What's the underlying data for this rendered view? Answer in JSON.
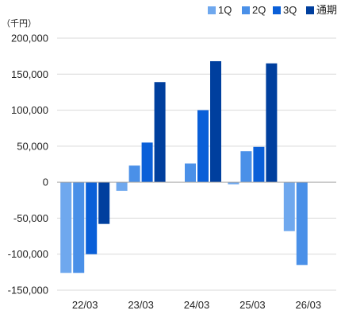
{
  "chart_data": {
    "type": "bar",
    "unit_label": "（千円）",
    "categories": [
      "22/03",
      "23/03",
      "24/03",
      "25/03",
      "26/03"
    ],
    "series": [
      {
        "name": "1Q",
        "color": "#6fa8ee",
        "values": [
          -126000,
          -12000,
          0,
          -3000,
          -68000
        ]
      },
      {
        "name": "2Q",
        "color": "#4a90e8",
        "values": [
          -126000,
          23000,
          26000,
          43000,
          -115000
        ]
      },
      {
        "name": "3Q",
        "color": "#0a5fd8",
        "values": [
          -100000,
          55000,
          100000,
          49000,
          null
        ]
      },
      {
        "name": "通期",
        "color": "#003f9e",
        "values": [
          -58000,
          139000,
          168000,
          165000,
          null
        ]
      }
    ],
    "ylim": [
      -150000,
      200000
    ],
    "yticks": [
      -150000,
      -100000,
      -50000,
      0,
      50000,
      100000,
      150000,
      200000
    ],
    "ytick_labels": [
      "-150,000",
      "-100,000",
      "-50,000",
      "0",
      "50,000",
      "100,000",
      "150,000",
      "200,000"
    ],
    "grid": true,
    "legend_position": "top-right"
  }
}
